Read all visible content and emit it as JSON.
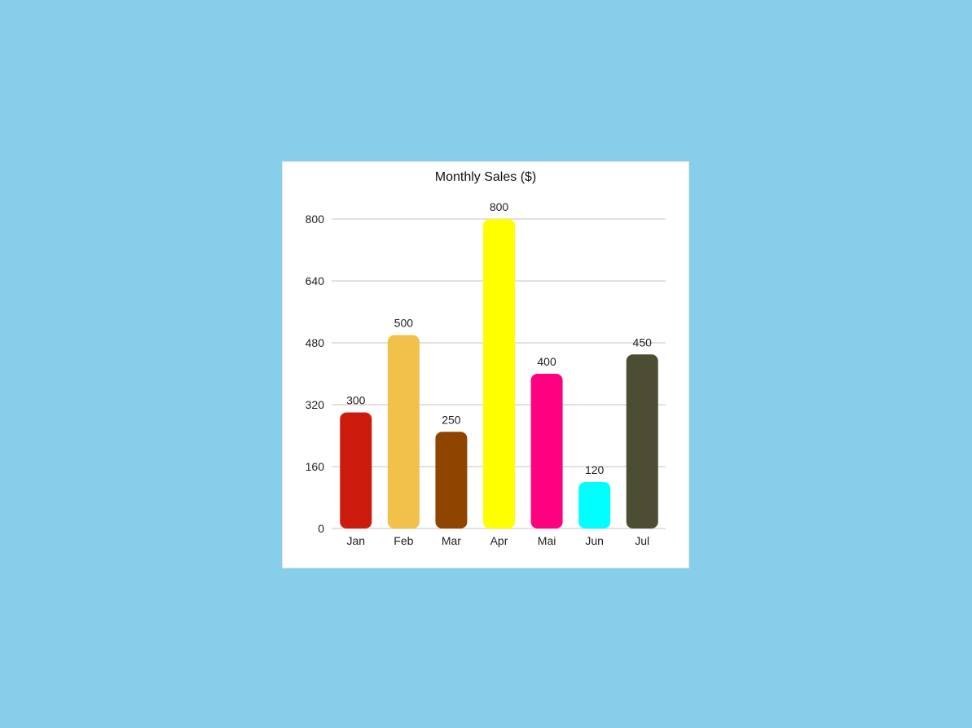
{
  "background_color": "#87ceeb",
  "chart_data": {
    "type": "bar",
    "title": "Monthly Sales ($)",
    "xlabel": "",
    "ylabel": "",
    "categories": [
      "Jan",
      "Feb",
      "Mar",
      "Apr",
      "Mai",
      "Jun",
      "Jul"
    ],
    "values": [
      300,
      500,
      250,
      800,
      400,
      120,
      450
    ],
    "colors": [
      "#cc1a0d",
      "#f2c14a",
      "#8f4500",
      "#ffff00",
      "#ff0080",
      "#00ffff",
      "#4d4d33"
    ],
    "ylim": [
      0,
      800
    ],
    "yticks": [
      0,
      160,
      320,
      480,
      640,
      800
    ],
    "grid": true,
    "data_labels": true
  }
}
